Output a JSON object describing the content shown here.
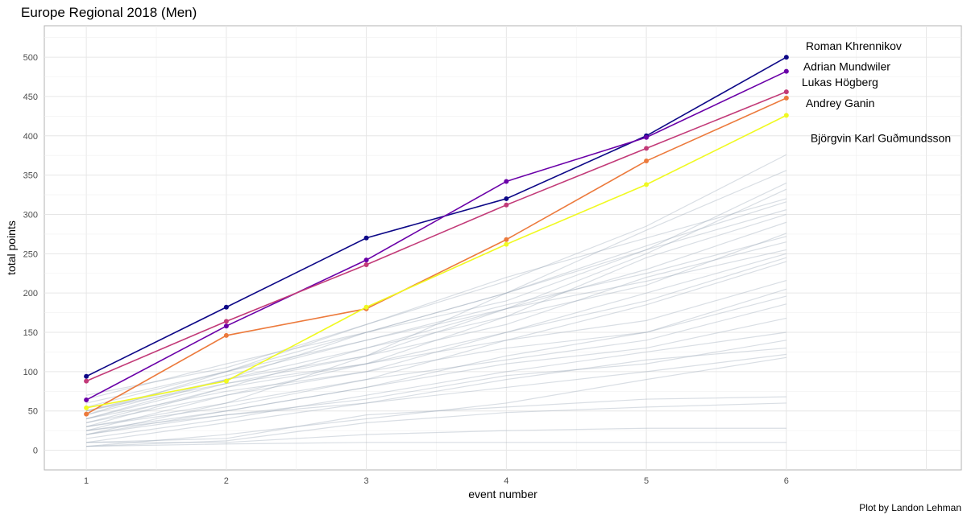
{
  "chart_data": {
    "type": "line",
    "title": "Europe Regional 2018 (Men)",
    "xlabel": "event number",
    "ylabel": "total points",
    "caption": "Plot by Landon Lehman",
    "x": [
      1,
      2,
      3,
      4,
      5,
      6
    ],
    "xlim": [
      0.7,
      7.25
    ],
    "ylim": [
      -25,
      540
    ],
    "xticks": [
      "1",
      "2",
      "3",
      "4",
      "5",
      "6"
    ],
    "yticks": [
      "0",
      "50",
      "100",
      "150",
      "200",
      "250",
      "300",
      "350",
      "400",
      "450",
      "500"
    ],
    "grid": true,
    "background_color": "#ffffff",
    "background_series_color": "#9aa8b8",
    "highlighted_series": [
      {
        "name": "Roman Khrennikov",
        "color": "#0d0887",
        "values": [
          94,
          182,
          270,
          320,
          400,
          500
        ]
      },
      {
        "name": "Adrian Mundwiler",
        "color": "#6a00a8",
        "values": [
          64,
          158,
          242,
          342,
          398,
          482
        ]
      },
      {
        "name": "Lukas Högberg",
        "color": "#c23a78",
        "values": [
          88,
          164,
          236,
          312,
          384,
          456
        ]
      },
      {
        "name": "Andrey Ganin",
        "color": "#ec7a3c",
        "values": [
          46,
          146,
          180,
          268,
          368,
          448
        ]
      },
      {
        "name": "Björgvin Karl Guðmundsson",
        "color": "#f0f921",
        "values": [
          54,
          88,
          182,
          262,
          338,
          426
        ]
      }
    ],
    "background_series": [
      {
        "values": [
          70,
          105,
          160,
          215,
          285,
          376
        ]
      },
      {
        "values": [
          60,
          100,
          150,
          200,
          280,
          356
        ]
      },
      {
        "values": [
          65,
          110,
          150,
          190,
          255,
          340
        ]
      },
      {
        "values": [
          50,
          95,
          140,
          180,
          250,
          332
        ]
      },
      {
        "values": [
          55,
          100,
          160,
          220,
          270,
          320
        ]
      },
      {
        "values": [
          45,
          90,
          150,
          200,
          260,
          316
        ]
      },
      {
        "values": [
          40,
          85,
          120,
          200,
          255,
          306
        ]
      },
      {
        "values": [
          35,
          80,
          130,
          170,
          245,
          300
        ]
      },
      {
        "values": [
          50,
          90,
          130,
          180,
          230,
          290
        ]
      },
      {
        "values": [
          30,
          80,
          110,
          170,
          210,
          276
        ]
      },
      {
        "values": [
          45,
          100,
          140,
          185,
          225,
          272
        ]
      },
      {
        "values": [
          40,
          90,
          120,
          160,
          220,
          265
        ]
      },
      {
        "values": [
          20,
          60,
          120,
          180,
          215,
          255
        ]
      },
      {
        "values": [
          35,
          70,
          100,
          150,
          200,
          250
        ]
      },
      {
        "values": [
          25,
          70,
          110,
          150,
          190,
          245
        ]
      },
      {
        "values": [
          30,
          60,
          90,
          140,
          185,
          240
        ]
      },
      {
        "values": [
          50,
          85,
          110,
          140,
          165,
          216
        ]
      },
      {
        "values": [
          40,
          75,
          100,
          130,
          150,
          205
        ]
      },
      {
        "values": [
          20,
          50,
          80,
          120,
          150,
          196
        ]
      },
      {
        "values": [
          30,
          55,
          90,
          115,
          140,
          186
        ]
      },
      {
        "values": [
          25,
          50,
          80,
          110,
          130,
          168
        ]
      },
      {
        "values": [
          15,
          40,
          70,
          100,
          125,
          150
        ]
      },
      {
        "values": [
          20,
          45,
          65,
          95,
          110,
          140
        ]
      },
      {
        "values": [
          10,
          35,
          60,
          90,
          115,
          130
        ]
      },
      {
        "values": [
          25,
          45,
          60,
          80,
          100,
          122
        ]
      },
      {
        "values": [
          5,
          20,
          40,
          60,
          90,
          118
        ]
      },
      {
        "values": [
          10,
          15,
          45,
          55,
          65,
          68
        ]
      },
      {
        "values": [
          5,
          12,
          35,
          48,
          55,
          60
        ]
      },
      {
        "values": [
          10,
          10,
          20,
          25,
          28,
          28
        ]
      },
      {
        "values": [
          5,
          8,
          10,
          10,
          10,
          10
        ]
      }
    ]
  }
}
